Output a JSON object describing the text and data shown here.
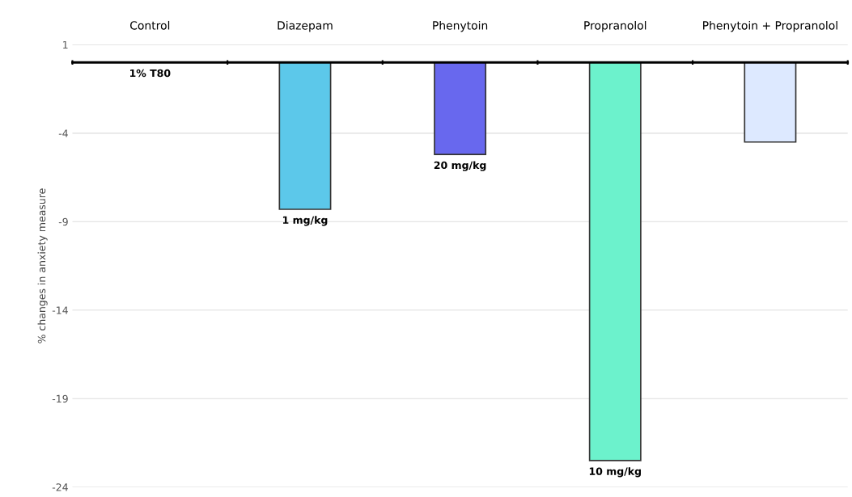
{
  "chart_data": {
    "type": "bar",
    "categories": [
      "Control",
      "Diazepam",
      "Phenytoin",
      "Propranolol",
      "Phenytoin + Propranolol"
    ],
    "values": [
      0,
      -8.3,
      -5.2,
      -22.5,
      -4.5
    ],
    "colors": [
      "#ffffff",
      "#5cc8ea",
      "#6868ee",
      "#6cf2cc",
      "#dde9ff"
    ],
    "annotations": [
      {
        "text": "1% T80",
        "x": "Control",
        "y": 0
      },
      {
        "text": "1 mg/kg",
        "x": "Diazepam",
        "y": -8.3
      },
      {
        "text": "20 mg/kg",
        "x": "Phenytoin",
        "y": -5.2
      },
      {
        "text": "10 mg/kg",
        "x": "Propranolol",
        "y": -22.5
      }
    ],
    "ylabel": "% changes in anxiety measure",
    "ylim": [
      -24,
      1
    ],
    "yticks": [
      1,
      -4,
      -9,
      -14,
      -19,
      -24
    ],
    "grid": "y"
  }
}
